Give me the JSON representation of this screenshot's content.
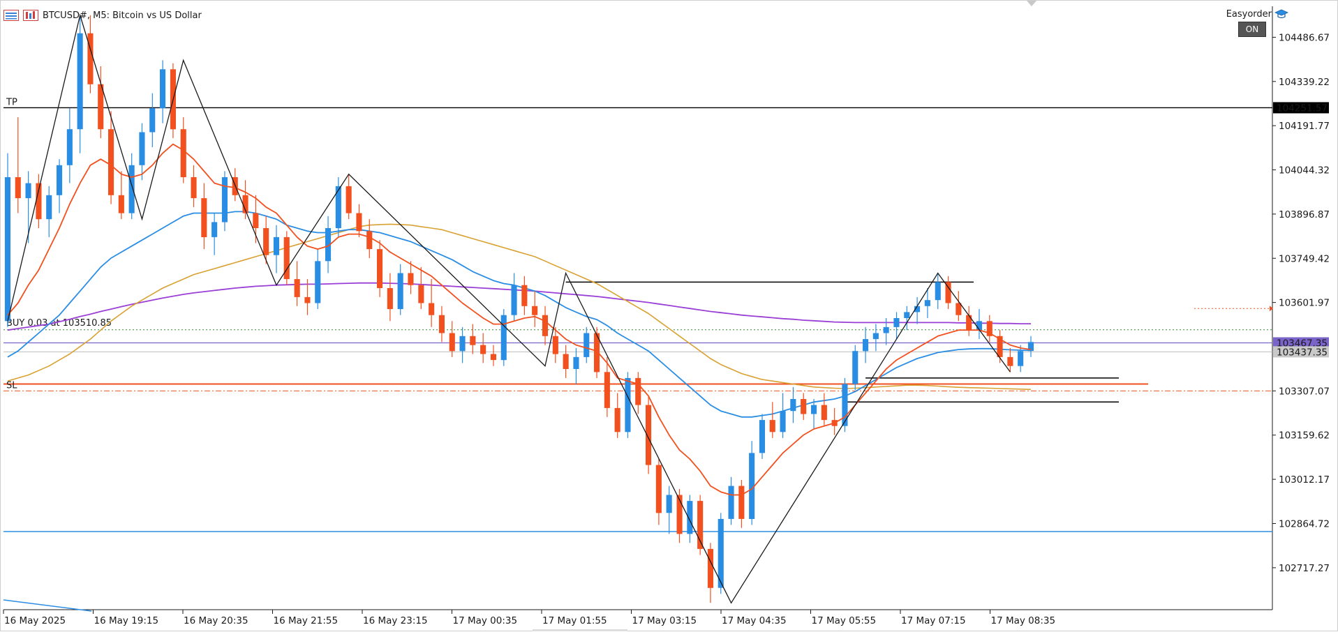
{
  "header": {
    "symbol_title": "BTCUSD#, M5:  Bitcoin vs US Dollar",
    "easyorder_label": "Easyorder",
    "on_button": "ON"
  },
  "colors": {
    "bull": "#2a8de4",
    "bear": "#f2501e",
    "ema_fast": "#f2501e",
    "ema_mid": "#2a8de4",
    "ema_slow": "#d9a132",
    "ema_long": "#9a3fd6",
    "zigzag": "#1a1a1a",
    "tp_line": "#000000",
    "sl_line": "#f2501e",
    "blue_level": "#2a8de4",
    "purple_level": "#7a63c9",
    "entry_line": "#2e8b2e"
  },
  "chart_data": {
    "type": "candlestick",
    "symbol": "BTCUSD#",
    "timeframe": "M5",
    "ylim": [
      102577.32,
      104590.0
    ],
    "y_ticks": [
      104486.67,
      104339.22,
      104191.77,
      104044.32,
      103896.87,
      103749.42,
      103601.97,
      103307.07,
      103159.62,
      103012.17,
      102864.72,
      102717.27
    ],
    "x_ticks": [
      "16 May 2025",
      "16 May 19:15",
      "16 May 20:35",
      "16 May 21:55",
      "16 May 23:15",
      "17 May 00:35",
      "17 May 01:55",
      "17 May 03:15",
      "17 May 04:35",
      "17 May 05:55",
      "17 May 07:15",
      "17 May 08:35"
    ],
    "price_tags": [
      {
        "label": "104251.57",
        "value": 104251.57,
        "style": "dark"
      },
      {
        "label": "103467.35",
        "value": 103467.35,
        "style": "purple"
      },
      {
        "label": "103437.35",
        "value": 103437.35,
        "style": "gray"
      }
    ],
    "levels": {
      "tp": {
        "label": "TP",
        "value": 104251.57
      },
      "sl": {
        "label": "SL",
        "value": 103330.0
      },
      "entry": {
        "label": "BUY 0.03 at 103510.85",
        "value": 103510.85
      },
      "blue_level": 102838.0,
      "purple_level": 103467.35,
      "gray_level": 103437.35,
      "sl_dashdot": 103307.07,
      "red_marker": 103582.0
    },
    "candles": [
      [
        103540,
        104100,
        103520,
        104020
      ],
      [
        104020,
        104220,
        103900,
        103950
      ],
      [
        103950,
        104040,
        103800,
        104000
      ],
      [
        104000,
        104030,
        103850,
        103880
      ],
      [
        103880,
        103990,
        103820,
        103960
      ],
      [
        103960,
        104080,
        103900,
        104060
      ],
      [
        104060,
        104250,
        104000,
        104180
      ],
      [
        104180,
        104560,
        104100,
        104500
      ],
      [
        104500,
        104560,
        104300,
        104330
      ],
      [
        104330,
        104390,
        104150,
        104180
      ],
      [
        104180,
        104240,
        103930,
        103960
      ],
      [
        103960,
        104040,
        103880,
        103900
      ],
      [
        103900,
        104100,
        103880,
        104060
      ],
      [
        104060,
        104200,
        104010,
        104170
      ],
      [
        104170,
        104300,
        104120,
        104250
      ],
      [
        104250,
        104410,
        104200,
        104380
      ],
      [
        104380,
        104400,
        104150,
        104180
      ],
      [
        104180,
        104220,
        104000,
        104020
      ],
      [
        104020,
        104060,
        103920,
        103950
      ],
      [
        103950,
        104000,
        103780,
        103820
      ],
      [
        103820,
        103900,
        103760,
        103870
      ],
      [
        103870,
        104040,
        103840,
        104020
      ],
      [
        104020,
        104050,
        103940,
        103960
      ],
      [
        103960,
        104010,
        103880,
        103900
      ],
      [
        103900,
        103960,
        103800,
        103850
      ],
      [
        103850,
        103890,
        103730,
        103760
      ],
      [
        103760,
        103860,
        103700,
        103820
      ],
      [
        103820,
        103840,
        103660,
        103680
      ],
      [
        103680,
        103740,
        103590,
        103620
      ],
      [
        103620,
        103680,
        103560,
        103600
      ],
      [
        103600,
        103780,
        103580,
        103740
      ],
      [
        103740,
        103890,
        103700,
        103850
      ],
      [
        103850,
        104020,
        103820,
        103990
      ],
      [
        103990,
        104030,
        103880,
        103900
      ],
      [
        103900,
        103930,
        103820,
        103840
      ],
      [
        103840,
        103880,
        103750,
        103780
      ],
      [
        103780,
        103810,
        103620,
        103650
      ],
      [
        103650,
        103700,
        103540,
        103580
      ],
      [
        103580,
        103730,
        103560,
        103700
      ],
      [
        103700,
        103740,
        103630,
        103660
      ],
      [
        103660,
        103720,
        103580,
        103600
      ],
      [
        103600,
        103680,
        103520,
        103560
      ],
      [
        103560,
        103590,
        103470,
        103500
      ],
      [
        103500,
        103540,
        103420,
        103440
      ],
      [
        103440,
        103520,
        103400,
        103490
      ],
      [
        103490,
        103530,
        103430,
        103460
      ],
      [
        103460,
        103500,
        103400,
        103430
      ],
      [
        103430,
        103460,
        103390,
        103410
      ],
      [
        103410,
        103580,
        103390,
        103560
      ],
      [
        103560,
        103700,
        103540,
        103660
      ],
      [
        103660,
        103690,
        103560,
        103590
      ],
      [
        103590,
        103640,
        103520,
        103560
      ],
      [
        103560,
        103590,
        103460,
        103490
      ],
      [
        103490,
        103520,
        103400,
        103430
      ],
      [
        103430,
        103460,
        103350,
        103380
      ],
      [
        103380,
        103450,
        103330,
        103420
      ],
      [
        103420,
        103520,
        103400,
        103500
      ],
      [
        103500,
        103520,
        103350,
        103370
      ],
      [
        103370,
        103420,
        103220,
        103250
      ],
      [
        103250,
        103300,
        103150,
        103170
      ],
      [
        103170,
        103370,
        103150,
        103350
      ],
      [
        103350,
        103370,
        103230,
        103260
      ],
      [
        103260,
        103290,
        103030,
        103060
      ],
      [
        103060,
        103080,
        102860,
        102900
      ],
      [
        102900,
        102990,
        102830,
        102960
      ],
      [
        102960,
        102980,
        102800,
        102830
      ],
      [
        102830,
        102960,
        102800,
        102940
      ],
      [
        102940,
        102960,
        102760,
        102780
      ],
      [
        102780,
        102800,
        102600,
        102650
      ],
      [
        102650,
        102900,
        102630,
        102880
      ],
      [
        102880,
        103020,
        102860,
        102990
      ],
      [
        102990,
        103010,
        102850,
        102880
      ],
      [
        102880,
        103140,
        102860,
        103100
      ],
      [
        103100,
        103230,
        103080,
        103210
      ],
      [
        103210,
        103270,
        103150,
        103170
      ],
      [
        103170,
        103300,
        103150,
        103240
      ],
      [
        103240,
        103320,
        103200,
        103280
      ],
      [
        103280,
        103300,
        103210,
        103230
      ],
      [
        103230,
        103280,
        103180,
        103260
      ],
      [
        103260,
        103300,
        103190,
        103210
      ],
      [
        103210,
        103250,
        103160,
        103190
      ],
      [
        103190,
        103350,
        103170,
        103330
      ],
      [
        103330,
        103460,
        103310,
        103440
      ],
      [
        103440,
        103520,
        103400,
        103480
      ],
      [
        103480,
        103530,
        103440,
        103500
      ],
      [
        103500,
        103550,
        103460,
        103520
      ],
      [
        103520,
        103570,
        103480,
        103550
      ],
      [
        103550,
        103590,
        103510,
        103570
      ],
      [
        103570,
        103620,
        103530,
        103590
      ],
      [
        103590,
        103650,
        103550,
        103610
      ],
      [
        103610,
        103700,
        103580,
        103670
      ],
      [
        103670,
        103690,
        103580,
        103600
      ],
      [
        103600,
        103640,
        103540,
        103560
      ],
      [
        103560,
        103590,
        103490,
        103510
      ],
      [
        103510,
        103580,
        103480,
        103540
      ],
      [
        103540,
        103560,
        103470,
        103490
      ],
      [
        103490,
        103510,
        103400,
        103420
      ],
      [
        103420,
        103450,
        103370,
        103390
      ],
      [
        103390,
        103460,
        103370,
        103440
      ],
      [
        103440,
        103490,
        103420,
        103470
      ]
    ],
    "ema_fast": [
      103560,
      103600,
      103660,
      103710,
      103780,
      103850,
      103930,
      104000,
      104060,
      104080,
      104060,
      104030,
      104020,
      104030,
      104060,
      104100,
      104130,
      104110,
      104080,
      104040,
      104000,
      103990,
      103985,
      103970,
      103950,
      103920,
      103900,
      103860,
      103820,
      103790,
      103780,
      103790,
      103820,
      103830,
      103830,
      103820,
      103800,
      103770,
      103750,
      103730,
      103710,
      103690,
      103660,
      103630,
      103600,
      103575,
      103550,
      103530,
      103530,
      103540,
      103550,
      103555,
      103540,
      103510,
      103480,
      103460,
      103450,
      103440,
      103400,
      103350,
      103340,
      103330,
      103290,
      103220,
      103160,
      103110,
      103080,
      103040,
      102990,
      102970,
      102960,
      102960,
      102980,
      103020,
      103060,
      103100,
      103130,
      103160,
      103180,
      103190,
      103200,
      103220,
      103260,
      103300,
      103340,
      103380,
      103410,
      103430,
      103450,
      103470,
      103490,
      103500,
      103510,
      103510,
      103510,
      103500,
      103480,
      103460,
      103450,
      103445
    ],
    "ema_mid": [
      103420,
      103440,
      103470,
      103500,
      103530,
      103560,
      103600,
      103640,
      103680,
      103720,
      103750,
      103770,
      103790,
      103810,
      103830,
      103850,
      103870,
      103890,
      103900,
      103900,
      103900,
      103900,
      103905,
      103905,
      103900,
      103890,
      103880,
      103860,
      103850,
      103840,
      103835,
      103835,
      103840,
      103845,
      103845,
      103840,
      103835,
      103825,
      103815,
      103805,
      103790,
      103775,
      103760,
      103745,
      103725,
      103705,
      103690,
      103675,
      103665,
      103660,
      103650,
      103640,
      103625,
      103605,
      103585,
      103570,
      103555,
      103545,
      103525,
      103500,
      103480,
      103460,
      103440,
      103410,
      103380,
      103350,
      103320,
      103290,
      103260,
      103240,
      103230,
      103220,
      103220,
      103225,
      103230,
      103240,
      103250,
      103260,
      103270,
      103275,
      103280,
      103290,
      103305,
      103325,
      103345,
      103365,
      103385,
      103400,
      103415,
      103425,
      103435,
      103440,
      103445,
      103447,
      103448,
      103448,
      103446,
      103444,
      103443,
      103442
    ],
    "ema_slow": [
      103340,
      103350,
      103360,
      103375,
      103390,
      103410,
      103430,
      103455,
      103480,
      103510,
      103540,
      103565,
      103590,
      103610,
      103630,
      103650,
      103665,
      103680,
      103695,
      103705,
      103715,
      103725,
      103735,
      103745,
      103755,
      103765,
      103775,
      103785,
      103795,
      103805,
      103815,
      103825,
      103835,
      103845,
      103855,
      103860,
      103862,
      103863,
      103862,
      103860,
      103855,
      103850,
      103845,
      103835,
      103825,
      103815,
      103805,
      103795,
      103785,
      103775,
      103765,
      103755,
      103740,
      103725,
      103710,
      103695,
      103680,
      103665,
      103645,
      103625,
      103605,
      103585,
      103565,
      103540,
      103515,
      103490,
      103465,
      103440,
      103415,
      103395,
      103380,
      103365,
      103355,
      103345,
      103340,
      103335,
      103330,
      103325,
      103320,
      103318,
      103316,
      103315,
      103316,
      103318,
      103320,
      103322,
      103324,
      103326,
      103326,
      103325,
      103323,
      103321,
      103319,
      103318,
      103317,
      103316,
      103315,
      103314,
      103313,
      103312
    ],
    "ema_long": [
      103510,
      103515,
      103520,
      103525,
      103530,
      103538,
      103546,
      103555,
      103563,
      103572,
      103580,
      103588,
      103596,
      103603,
      103610,
      103617,
      103623,
      103629,
      103634,
      103638,
      103642,
      103646,
      103650,
      103653,
      103656,
      103658,
      103660,
      103661,
      103662,
      103663,
      103663,
      103664,
      103665,
      103666,
      103667,
      103667,
      103667,
      103666,
      103665,
      103664,
      103662,
      103660,
      103658,
      103656,
      103654,
      103652,
      103650,
      103648,
      103646,
      103644,
      103642,
      103640,
      103637,
      103634,
      103631,
      103628,
      103625,
      103622,
      103618,
      103614,
      103610,
      103606,
      103602,
      103597,
      103592,
      103587,
      103582,
      103577,
      103572,
      103568,
      103564,
      103560,
      103557,
      103554,
      103551,
      103548,
      103546,
      103543,
      103541,
      103539,
      103537,
      103536,
      103535,
      103535,
      103535,
      103535,
      103535,
      103535,
      103535,
      103535,
      103535,
      103535,
      103534,
      103534,
      103533,
      103533,
      103532,
      103532,
      103531,
      103531
    ],
    "zigzag_points": [
      [
        0,
        103540
      ],
      [
        7,
        104560
      ],
      [
        13,
        103880
      ],
      [
        17,
        104410
      ],
      [
        26,
        103660
      ],
      [
        33,
        104030
      ],
      [
        52,
        103390
      ],
      [
        54,
        103700
      ],
      [
        70,
        102600
      ],
      [
        90,
        103700
      ],
      [
        97,
        103370
      ]
    ]
  }
}
